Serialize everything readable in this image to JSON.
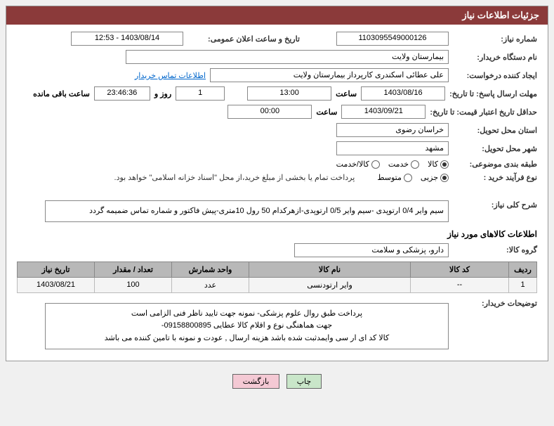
{
  "colors": {
    "header_bg": "#8b3a3a",
    "header_text": "#ffffff",
    "border": "#888888",
    "table_header_bg": "#b8b8b8",
    "table_cell_bg": "#f4f4f4",
    "link": "#0066cc",
    "btn_green": "#c9e6c9",
    "btn_pink": "#f4c9d4",
    "watermark": "rgba(180,40,40,0.12)"
  },
  "watermark_text": "AriaTender.net",
  "header": {
    "title": "جزئیات اطلاعات نیاز"
  },
  "labels": {
    "need_no": "شماره نیاز:",
    "announce_dt": "تاریخ و ساعت اعلان عمومی:",
    "buyer_org": "نام دستگاه خریدار:",
    "requester": "ایجاد کننده درخواست:",
    "response_deadline": "مهلت ارسال پاسخ: تا تاریخ:",
    "hour": "ساعت",
    "day_and": "روز و",
    "remaining": "ساعت باقی مانده",
    "price_validity": "حداقل تاریخ اعتبار قیمت: تا تاریخ:",
    "delivery_province": "استان محل تحویل:",
    "delivery_city": "شهر محل تحویل:",
    "category": "طبقه بندی موضوعی:",
    "purchase_type": "نوع فرآیند خرید :",
    "overall_desc": "شرح کلی نیاز:",
    "goods_info": "اطلاعات کالاهای مورد نیاز",
    "goods_group": "گروه کالا:",
    "buyer_notes": "توضیحات خریدار:"
  },
  "values": {
    "need_no": "1103095549000126",
    "announce_dt": "1403/08/14 - 12:53",
    "buyer_org": "بیمارستان ولایت",
    "requester": "علی عطائی اسکندری کارپرداز بیمارستان ولایت",
    "contact_link": "اطلاعات تماس خریدار",
    "deadline_date": "1403/08/16",
    "deadline_time": "13:00",
    "days_left": "1",
    "time_left": "23:46:36",
    "validity_date": "1403/09/21",
    "validity_time": "00:00",
    "province": "خراسان رضوی",
    "city": "مشهد",
    "payment_note": "پرداخت تمام یا بخشی از مبلغ خرید،از محل \"اسناد خزانه اسلامی\" خواهد بود.",
    "overall_desc": "سیم وایر 0/4 ارتوپدی -سیم وایر 0/5 ارتوپدی-ازهرکدام 50 رول 10متری-پیش فاکتور و شماره تماس ضمیمه گردد",
    "goods_group": "دارو، پزشکی و سلامت",
    "buyer_notes_l1": "پرداخت طبق روال علوم پزشکی-  نمونه جهت تایید ناظر فنی الزامی است",
    "buyer_notes_l2": "جهت هماهنگی نوع و اقلام کالا  عطایی 09158800895-",
    "buyer_notes_l3": "کالا کد ای ار سی وایمدثبت شده باشد هزینه ارسال , عودت و نمونه با تامین کننده می باشد"
  },
  "radios": {
    "category": {
      "options": [
        "کالا",
        "خدمت",
        "کالا/خدمت"
      ],
      "selected": 0
    },
    "purchase": {
      "options": [
        "جزیی",
        "متوسط"
      ],
      "selected": 0
    }
  },
  "table": {
    "columns": [
      "ردیف",
      "کد کالا",
      "نام کالا",
      "واحد شمارش",
      "تعداد / مقدار",
      "تاریخ نیاز"
    ],
    "col_widths": [
      "40px",
      "140px",
      "auto",
      "110px",
      "110px",
      "110px"
    ],
    "rows": [
      [
        "1",
        "--",
        "وایر ارتودنسی",
        "عدد",
        "100",
        "1403/08/21"
      ]
    ]
  },
  "buttons": {
    "print": "چاپ",
    "back": "بازگشت"
  }
}
